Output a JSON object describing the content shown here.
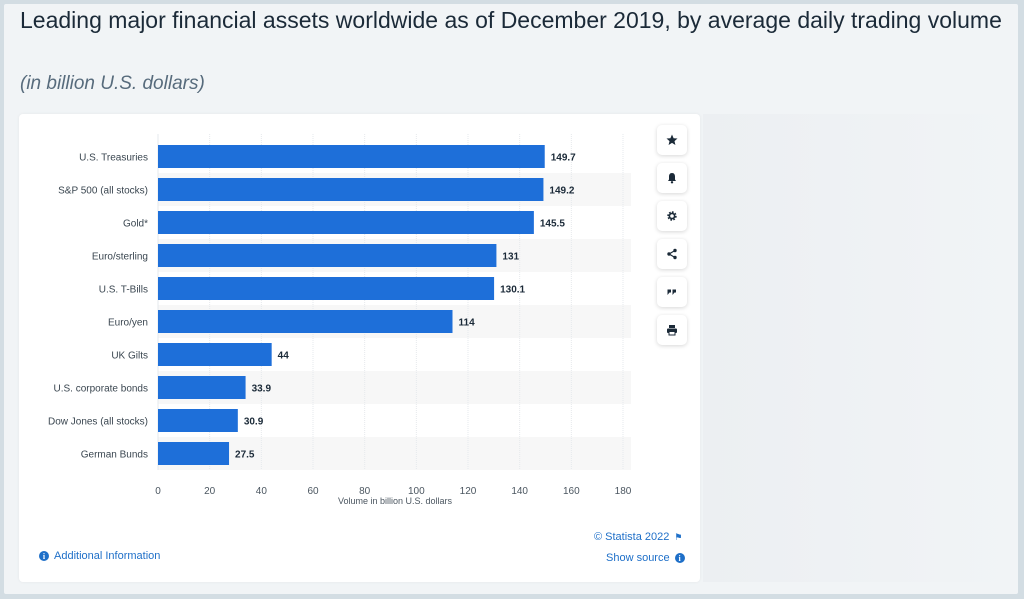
{
  "header": {
    "title": "Leading major financial assets worldwide as of December 2019, by average daily trading volume",
    "subtitle": "(in billion U.S. dollars)"
  },
  "toolbar": {
    "buttons": [
      {
        "icon": "star-icon"
      },
      {
        "icon": "bell-icon"
      },
      {
        "icon": "gear-icon"
      },
      {
        "icon": "share-icon"
      },
      {
        "icon": "quote-icon"
      },
      {
        "icon": "print-icon"
      }
    ]
  },
  "footer": {
    "additional_info": "Additional Information",
    "copyright": "© Statista 2022",
    "show_source": "Show source"
  },
  "colors": {
    "bar": "#1e6fd9",
    "accent": "#1e6fc8",
    "band": "#f7f7f7"
  },
  "chart_data": {
    "type": "bar",
    "orientation": "horizontal",
    "categories": [
      "U.S. Treasuries",
      "S&P 500 (all stocks)",
      "Gold*",
      "Euro/sterling",
      "U.S. T-Bills",
      "Euro/yen",
      "UK Gilts",
      "U.S. corporate bonds",
      "Dow Jones (all stocks)",
      "German Bunds"
    ],
    "values": [
      149.7,
      149.2,
      145.5,
      131,
      130.1,
      114,
      44,
      33.9,
      30.9,
      27.5
    ],
    "value_labels": [
      "149.7",
      "149.2",
      "145.5",
      "131",
      "130.1",
      "114",
      "44",
      "33.9",
      "30.9",
      "27.5"
    ],
    "xticks": [
      "0",
      "20",
      "40",
      "60",
      "80",
      "100",
      "120",
      "140",
      "160",
      "180"
    ],
    "xlim": [
      0,
      180
    ],
    "xlabel": "Volume in billion U.S. dollars",
    "ylabel": "",
    "grid": "vertical",
    "legend": "none"
  }
}
